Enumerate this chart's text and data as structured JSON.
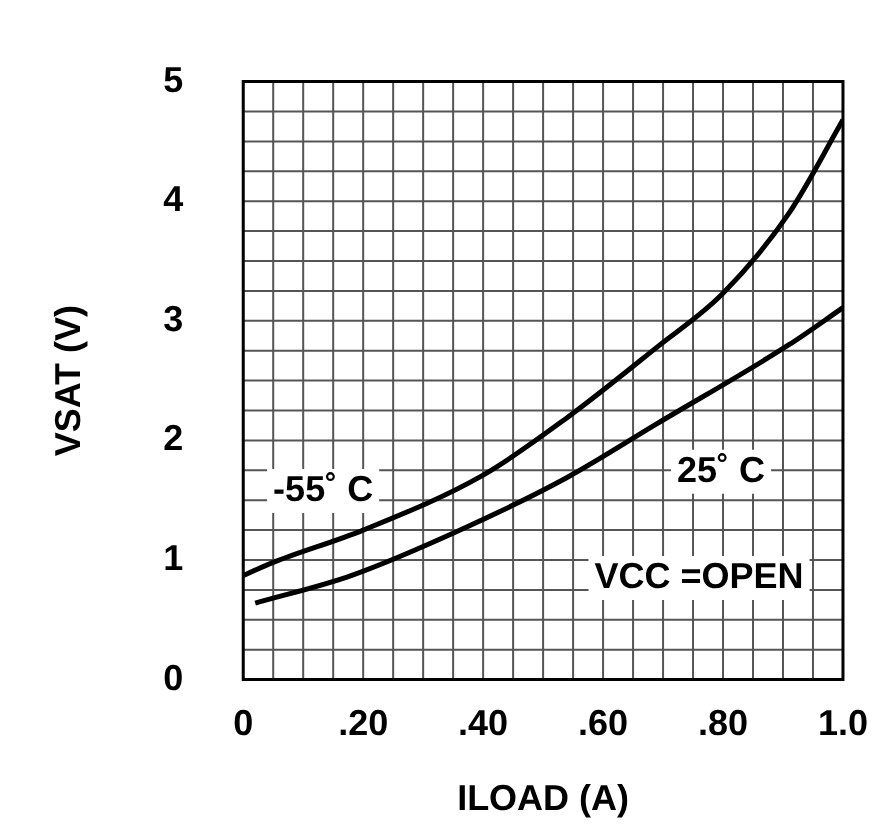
{
  "chart_data": {
    "type": "line",
    "xlabel": "ILOAD (A)",
    "ylabel": "VSAT (V)",
    "annotations": [
      "VCC =OPEN"
    ],
    "series": [
      {
        "name": "-55˚ C",
        "color": "#000000",
        "x": [
          0,
          0.05,
          0.2,
          0.4,
          0.54,
          0.69,
          0.8,
          0.91,
          1.0
        ],
        "values": [
          0.87,
          0.98,
          1.25,
          1.71,
          2.19,
          2.78,
          3.23,
          3.9,
          4.68
        ]
      },
      {
        "name": "25˚ C",
        "color": "#000000",
        "x": [
          0.02,
          0.18,
          0.37,
          0.54,
          0.69,
          0.91,
          1.0
        ],
        "values": [
          0.64,
          0.87,
          1.27,
          1.69,
          2.14,
          2.8,
          3.11
        ]
      }
    ],
    "xlim": [
      0,
      1.0
    ],
    "xticks": [
      0,
      {
        "value": 0.2,
        "label": ".20"
      },
      {
        "value": 0.4,
        "label": ".40"
      },
      {
        "value": 0.6,
        "label": ".60"
      },
      {
        "value": 0.8,
        "label": ".80"
      },
      {
        "value": 1.0,
        "label": "1.0"
      }
    ],
    "ylim": [
      0,
      5
    ],
    "yticks": [
      0,
      1,
      2,
      3,
      4,
      5
    ],
    "grid": true,
    "legend": false,
    "marker": "none",
    "line_style": "solid"
  }
}
